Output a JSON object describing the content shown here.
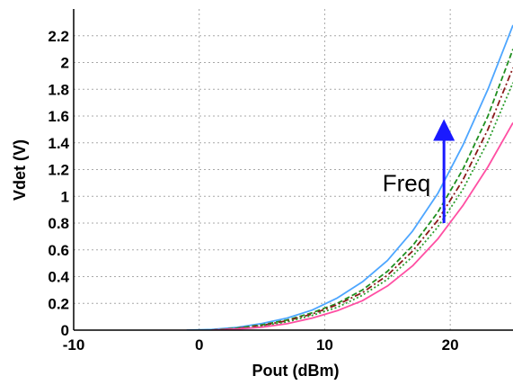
{
  "chart_data": {
    "type": "line",
    "xlabel": "Pout (dBm)",
    "ylabel": "Vdet (V)",
    "xlim": [
      -10,
      25
    ],
    "ylim": [
      0,
      2.4
    ],
    "x_ticks": [
      "-10",
      "0",
      "10",
      "20"
    ],
    "y_ticks": [
      "0",
      "0.2",
      "0.4",
      "0.6",
      "0.8",
      "1",
      "1.2",
      "1.4",
      "1.6",
      "1.8",
      "2",
      "2.2"
    ],
    "grid": true,
    "annotation": {
      "text": "Freq",
      "arrow": {
        "x": 19.5,
        "y_from": 0.8,
        "y_to": 1.55
      }
    },
    "series": [
      {
        "color": "#4da6ff",
        "style": "solid",
        "x": [
          -1,
          1,
          3,
          5,
          7,
          9,
          11,
          13,
          15,
          17,
          19,
          21,
          23,
          25
        ],
        "y": [
          0.0,
          0.005,
          0.02,
          0.05,
          0.09,
          0.15,
          0.24,
          0.36,
          0.52,
          0.74,
          1.02,
          1.38,
          1.8,
          2.28
        ]
      },
      {
        "color": "#1f8f1f",
        "style": "dashed",
        "x": [
          1,
          3,
          5,
          7,
          9,
          11,
          13,
          15,
          17,
          19,
          21,
          23,
          25
        ],
        "y": [
          0.0,
          0.015,
          0.04,
          0.075,
          0.13,
          0.2,
          0.3,
          0.44,
          0.63,
          0.88,
          1.2,
          1.6,
          2.1
        ]
      },
      {
        "color": "#8b1a1a",
        "style": "dashdot",
        "x": [
          1,
          3,
          5,
          7,
          9,
          11,
          13,
          15,
          17,
          19,
          21,
          23,
          25
        ],
        "y": [
          0.0,
          0.012,
          0.035,
          0.07,
          0.12,
          0.19,
          0.28,
          0.41,
          0.59,
          0.82,
          1.12,
          1.5,
          1.96
        ]
      },
      {
        "color": "#2e9e2e",
        "style": "dotted",
        "x": [
          1,
          3,
          5,
          7,
          9,
          11,
          13,
          15,
          17,
          19,
          21,
          23,
          25
        ],
        "y": [
          0.0,
          0.01,
          0.03,
          0.062,
          0.11,
          0.17,
          0.26,
          0.38,
          0.55,
          0.77,
          1.05,
          1.41,
          1.85
        ]
      },
      {
        "color": "#ff4fa3",
        "style": "solid",
        "x": [
          1,
          3,
          5,
          7,
          9,
          11,
          13,
          15,
          17,
          19,
          21,
          23,
          25
        ],
        "y": [
          0.0,
          0.008,
          0.022,
          0.048,
          0.09,
          0.145,
          0.22,
          0.33,
          0.48,
          0.68,
          0.93,
          1.22,
          1.55
        ]
      }
    ]
  }
}
